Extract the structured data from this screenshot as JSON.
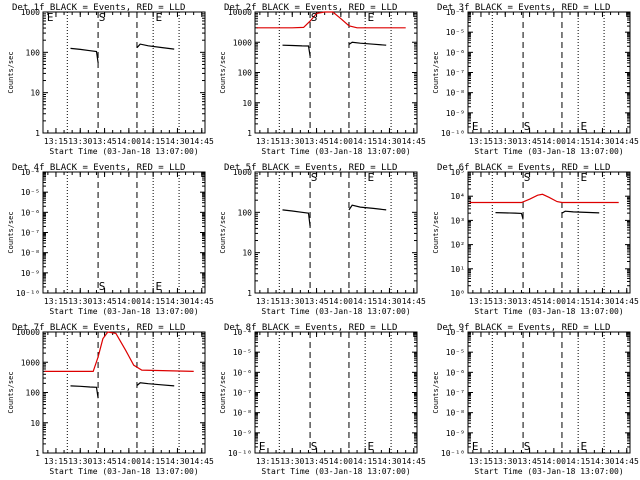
{
  "figure": {
    "title_template": "Det {n}f BLACK = Events, RED = LLD",
    "xlabel": "Start Time (03-Jan-18 13:07:00)",
    "ylabel": "Counts/sec",
    "xticks": [
      "13:15",
      "13:30",
      "13:45",
      "14:00",
      "14:15",
      "14:30",
      "14:45"
    ]
  },
  "chart_data": [
    {
      "type": "line",
      "title": "Det 1f BLACK = Events, RED = LLD",
      "ylabel": "Counts/sec",
      "xlabel": "Start Time (03-Jan-18 13:07:00)",
      "yscale": "log",
      "ylim": [
        1,
        1000
      ],
      "yticks": [
        "1",
        "10",
        "100",
        "1000"
      ],
      "xlim_minutes_of_day": [
        787,
        887
      ],
      "dotted_vlines": [
        "13:22",
        "14:15",
        "14:31"
      ],
      "dashed_vlines": [
        "13:41",
        "14:05"
      ],
      "markers": [
        {
          "label": "S",
          "x": "13:41",
          "pos": "top"
        },
        {
          "label": "E",
          "x": "14:16",
          "pos": "top"
        },
        {
          "label": "E",
          "x": "13:09",
          "pos": "top"
        }
      ],
      "series": [
        {
          "name": "Events",
          "color": "#000000",
          "segments": [
            [
              [
                "13:24",
                125
              ],
              [
                "13:30",
                118
              ],
              [
                "13:36",
                110
              ],
              [
                "13:40",
                105
              ],
              [
                "13:41",
                55
              ]
            ],
            [
              [
                "14:05",
                130
              ],
              [
                "14:07",
                160
              ],
              [
                "14:12",
                145
              ],
              [
                "14:20",
                132
              ],
              [
                "14:28",
                120
              ]
            ]
          ]
        }
      ]
    },
    {
      "type": "line",
      "title": "Det 2f BLACK = Events, RED = LLD",
      "ylabel": "Counts/sec",
      "xlabel": "Start Time (03-Jan-18 13:07:00)",
      "yscale": "log",
      "ylim": [
        1,
        10000
      ],
      "yticks": [
        "1",
        "10",
        "100",
        "1000",
        "10000"
      ],
      "xlim_minutes_of_day": [
        787,
        887
      ],
      "dotted_vlines": [
        "13:22",
        "14:15",
        "14:31"
      ],
      "dashed_vlines": [
        "13:41",
        "14:05"
      ],
      "markers": [
        {
          "label": "S",
          "x": "13:41",
          "pos": "top"
        },
        {
          "label": "E",
          "x": "14:16",
          "pos": "top"
        }
      ],
      "series": [
        {
          "name": "LLD",
          "color": "#dd0000",
          "segments": [
            [
              [
                "13:08",
                3000
              ],
              [
                "13:30",
                3000
              ],
              [
                "13:37",
                3100
              ],
              [
                "13:41",
                5000
              ],
              [
                "13:45",
                9000
              ],
              [
                "13:50",
                11000
              ],
              [
                "13:55",
                10000
              ],
              [
                "14:00",
                6000
              ],
              [
                "14:05",
                3500
              ],
              [
                "14:10",
                3000
              ],
              [
                "14:40",
                3000
              ]
            ]
          ]
        },
        {
          "name": "Events",
          "color": "#000000",
          "segments": [
            [
              [
                "13:24",
                800
              ],
              [
                "13:30",
                780
              ],
              [
                "13:36",
                760
              ],
              [
                "13:40",
                750
              ],
              [
                "13:41",
                350
              ]
            ],
            [
              [
                "14:05",
                850
              ],
              [
                "14:07",
                1000
              ],
              [
                "14:12",
                930
              ],
              [
                "14:20",
                860
              ],
              [
                "14:28",
                800
              ]
            ]
          ]
        }
      ]
    },
    {
      "type": "line",
      "title": "Det 3f BLACK = Events, RED = LLD",
      "ylabel": "Counts/sec",
      "xlabel": "Start Time (03-Jan-18 13:07:00)",
      "yscale": "log",
      "ylim": [
        1e-10,
        0.0001
      ],
      "yticks": [
        "10⁻¹⁰",
        "10⁻⁹",
        "10⁻⁸",
        "10⁻⁷",
        "10⁻⁶",
        "10⁻⁵",
        "10⁻⁴"
      ],
      "xlim_minutes_of_day": [
        787,
        887
      ],
      "dotted_vlines": [
        "13:22",
        "14:15",
        "14:31"
      ],
      "dashed_vlines": [
        "13:41",
        "14:05"
      ],
      "markers": [
        {
          "label": "E",
          "x": "13:09",
          "pos": "bottom"
        },
        {
          "label": "S",
          "x": "13:41",
          "pos": "bottom"
        },
        {
          "label": "E",
          "x": "14:16",
          "pos": "bottom"
        }
      ],
      "series": []
    },
    {
      "type": "line",
      "title": "Det 4f BLACK = Events, RED = LLD",
      "ylabel": "Counts/sec",
      "xlabel": "Start Time (03-Jan-18 13:07:00)",
      "yscale": "log",
      "ylim": [
        1e-10,
        0.0001
      ],
      "yticks": [
        "10⁻¹⁰",
        "10⁻⁹",
        "10⁻⁸",
        "10⁻⁷",
        "10⁻⁶",
        "10⁻⁵",
        "10⁻⁴"
      ],
      "xlim_minutes_of_day": [
        787,
        887
      ],
      "dotted_vlines": [
        "13:22",
        "14:15",
        "14:31"
      ],
      "dashed_vlines": [
        "13:41",
        "14:05"
      ],
      "markers": [
        {
          "label": "S",
          "x": "13:41",
          "pos": "bottom"
        },
        {
          "label": "E",
          "x": "14:16",
          "pos": "bottom"
        }
      ],
      "series": []
    },
    {
      "type": "line",
      "title": "Det 5f BLACK = Events, RED = LLD",
      "ylabel": "Counts/sec",
      "xlabel": "Start Time (03-Jan-18 13:07:00)",
      "yscale": "log",
      "ylim": [
        1,
        1000
      ],
      "yticks": [
        "1",
        "10",
        "100",
        "1000"
      ],
      "xlim_minutes_of_day": [
        787,
        887
      ],
      "dotted_vlines": [
        "13:22",
        "14:15",
        "14:31"
      ],
      "dashed_vlines": [
        "13:41",
        "14:05"
      ],
      "markers": [
        {
          "label": "S",
          "x": "13:41",
          "pos": "top"
        },
        {
          "label": "E",
          "x": "14:16",
          "pos": "top"
        }
      ],
      "series": [
        {
          "name": "Events",
          "color": "#000000",
          "segments": [
            [
              [
                "13:24",
                115
              ],
              [
                "13:30",
                108
              ],
              [
                "13:36",
                100
              ],
              [
                "13:40",
                95
              ],
              [
                "13:41",
                45
              ]
            ],
            [
              [
                "14:05",
                115
              ],
              [
                "14:07",
                150
              ],
              [
                "14:12",
                135
              ],
              [
                "14:20",
                125
              ],
              [
                "14:28",
                115
              ]
            ]
          ]
        }
      ]
    },
    {
      "type": "line",
      "title": "Det 6f BLACK = Events, RED = LLD",
      "ylabel": "Counts/sec",
      "xlabel": "Start Time (03-Jan-18 13:07:00)",
      "yscale": "log",
      "ylim": [
        1,
        100000
      ],
      "yticks": [
        "10⁰",
        "10¹",
        "10²",
        "10³",
        "10⁴",
        "10⁵"
      ],
      "xlim_minutes_of_day": [
        787,
        887
      ],
      "dotted_vlines": [
        "13:22",
        "14:15",
        "14:31"
      ],
      "dashed_vlines": [
        "13:41",
        "14:05"
      ],
      "markers": [
        {
          "label": "S",
          "x": "13:41",
          "pos": "top"
        },
        {
          "label": "E",
          "x": "14:16",
          "pos": "top"
        }
      ],
      "series": [
        {
          "name": "LLD",
          "color": "#dd0000",
          "segments": [
            [
              [
                "13:08",
                5500
              ],
              [
                "13:40",
                5500
              ],
              [
                "13:45",
                7500
              ],
              [
                "13:50",
                11000
              ],
              [
                "13:53",
                12000
              ],
              [
                "13:57",
                9000
              ],
              [
                "14:02",
                6000
              ],
              [
                "14:05",
                5500
              ],
              [
                "14:40",
                5500
              ]
            ]
          ]
        },
        {
          "name": "Events",
          "color": "#000000",
          "segments": [
            [
              [
                "13:24",
                2100
              ],
              [
                "13:30",
                2050
              ],
              [
                "13:36",
                2000
              ],
              [
                "13:40",
                1950
              ],
              [
                "13:41",
                1100
              ]
            ],
            [
              [
                "14:05",
                2000
              ],
              [
                "14:07",
                2400
              ],
              [
                "14:12",
                2250
              ],
              [
                "14:20",
                2150
              ],
              [
                "14:28",
                2050
              ]
            ]
          ]
        }
      ]
    },
    {
      "type": "line",
      "title": "Det 7f BLACK = Events, RED = LLD",
      "ylabel": "Counts/sec",
      "xlabel": "Start Time (03-Jan-18 13:07:00)",
      "yscale": "log",
      "ylim": [
        1,
        10000
      ],
      "yticks": [
        "1",
        "10",
        "100",
        "1000",
        "10000"
      ],
      "xlim_minutes_of_day": [
        787,
        887
      ],
      "dotted_vlines": [
        "13:22",
        "14:15",
        "14:31"
      ],
      "dashed_vlines": [
        "13:41",
        "14:05"
      ],
      "markers": [],
      "series": [
        {
          "name": "LLD",
          "color": "#dd0000",
          "segments": [
            [
              [
                "13:08",
                500
              ],
              [
                "13:38",
                500
              ],
              [
                "13:41",
                1500
              ],
              [
                "13:44",
                6000
              ],
              [
                "13:47",
                12000
              ],
              [
                "13:52",
                9000
              ],
              [
                "13:58",
                2500
              ],
              [
                "14:03",
                800
              ],
              [
                "14:08",
                550
              ],
              [
                "14:40",
                500
              ]
            ]
          ]
        },
        {
          "name": "Events",
          "color": "#000000",
          "segments": [
            [
              [
                "13:24",
                165
              ],
              [
                "13:30",
                160
              ],
              [
                "13:36",
                152
              ],
              [
                "13:40",
                148
              ],
              [
                "13:41",
                65
              ]
            ],
            [
              [
                "14:05",
                170
              ],
              [
                "14:07",
                210
              ],
              [
                "14:12",
                195
              ],
              [
                "14:20",
                180
              ],
              [
                "14:28",
                165
              ]
            ]
          ]
        }
      ]
    },
    {
      "type": "line",
      "title": "Det 8f BLACK = Events, RED = LLD",
      "ylabel": "Counts/sec",
      "xlabel": "Start Time (03-Jan-18 13:07:00)",
      "yscale": "log",
      "ylim": [
        1e-10,
        0.0001
      ],
      "yticks": [
        "10⁻¹⁰",
        "10⁻⁹",
        "10⁻⁸",
        "10⁻⁷",
        "10⁻⁶",
        "10⁻⁵",
        "10⁻⁴"
      ],
      "xlim_minutes_of_day": [
        787,
        887
      ],
      "dotted_vlines": [
        "13:22",
        "14:15",
        "14:31"
      ],
      "dashed_vlines": [
        "13:41",
        "14:05"
      ],
      "markers": [
        {
          "label": "E",
          "x": "13:09",
          "pos": "bottom"
        },
        {
          "label": "S",
          "x": "13:41",
          "pos": "bottom"
        },
        {
          "label": "E",
          "x": "14:16",
          "pos": "bottom"
        }
      ],
      "series": []
    },
    {
      "type": "line",
      "title": "Det 9f BLACK = Events, RED = LLD",
      "ylabel": "Counts/sec",
      "xlabel": "Start Time (03-Jan-18 13:07:00)",
      "yscale": "log",
      "ylim": [
        1e-10,
        0.0001
      ],
      "yticks": [
        "10⁻¹⁰",
        "10⁻⁹",
        "10⁻⁸",
        "10⁻⁷",
        "10⁻⁶",
        "10⁻⁵",
        "10⁻⁴"
      ],
      "xlim_minutes_of_day": [
        787,
        887
      ],
      "dotted_vlines": [
        "13:22",
        "14:15",
        "14:31"
      ],
      "dashed_vlines": [
        "13:41",
        "14:05"
      ],
      "markers": [
        {
          "label": "E",
          "x": "13:09",
          "pos": "bottom"
        },
        {
          "label": "S",
          "x": "13:41",
          "pos": "bottom"
        },
        {
          "label": "E",
          "x": "14:16",
          "pos": "bottom"
        }
      ],
      "series": []
    }
  ]
}
